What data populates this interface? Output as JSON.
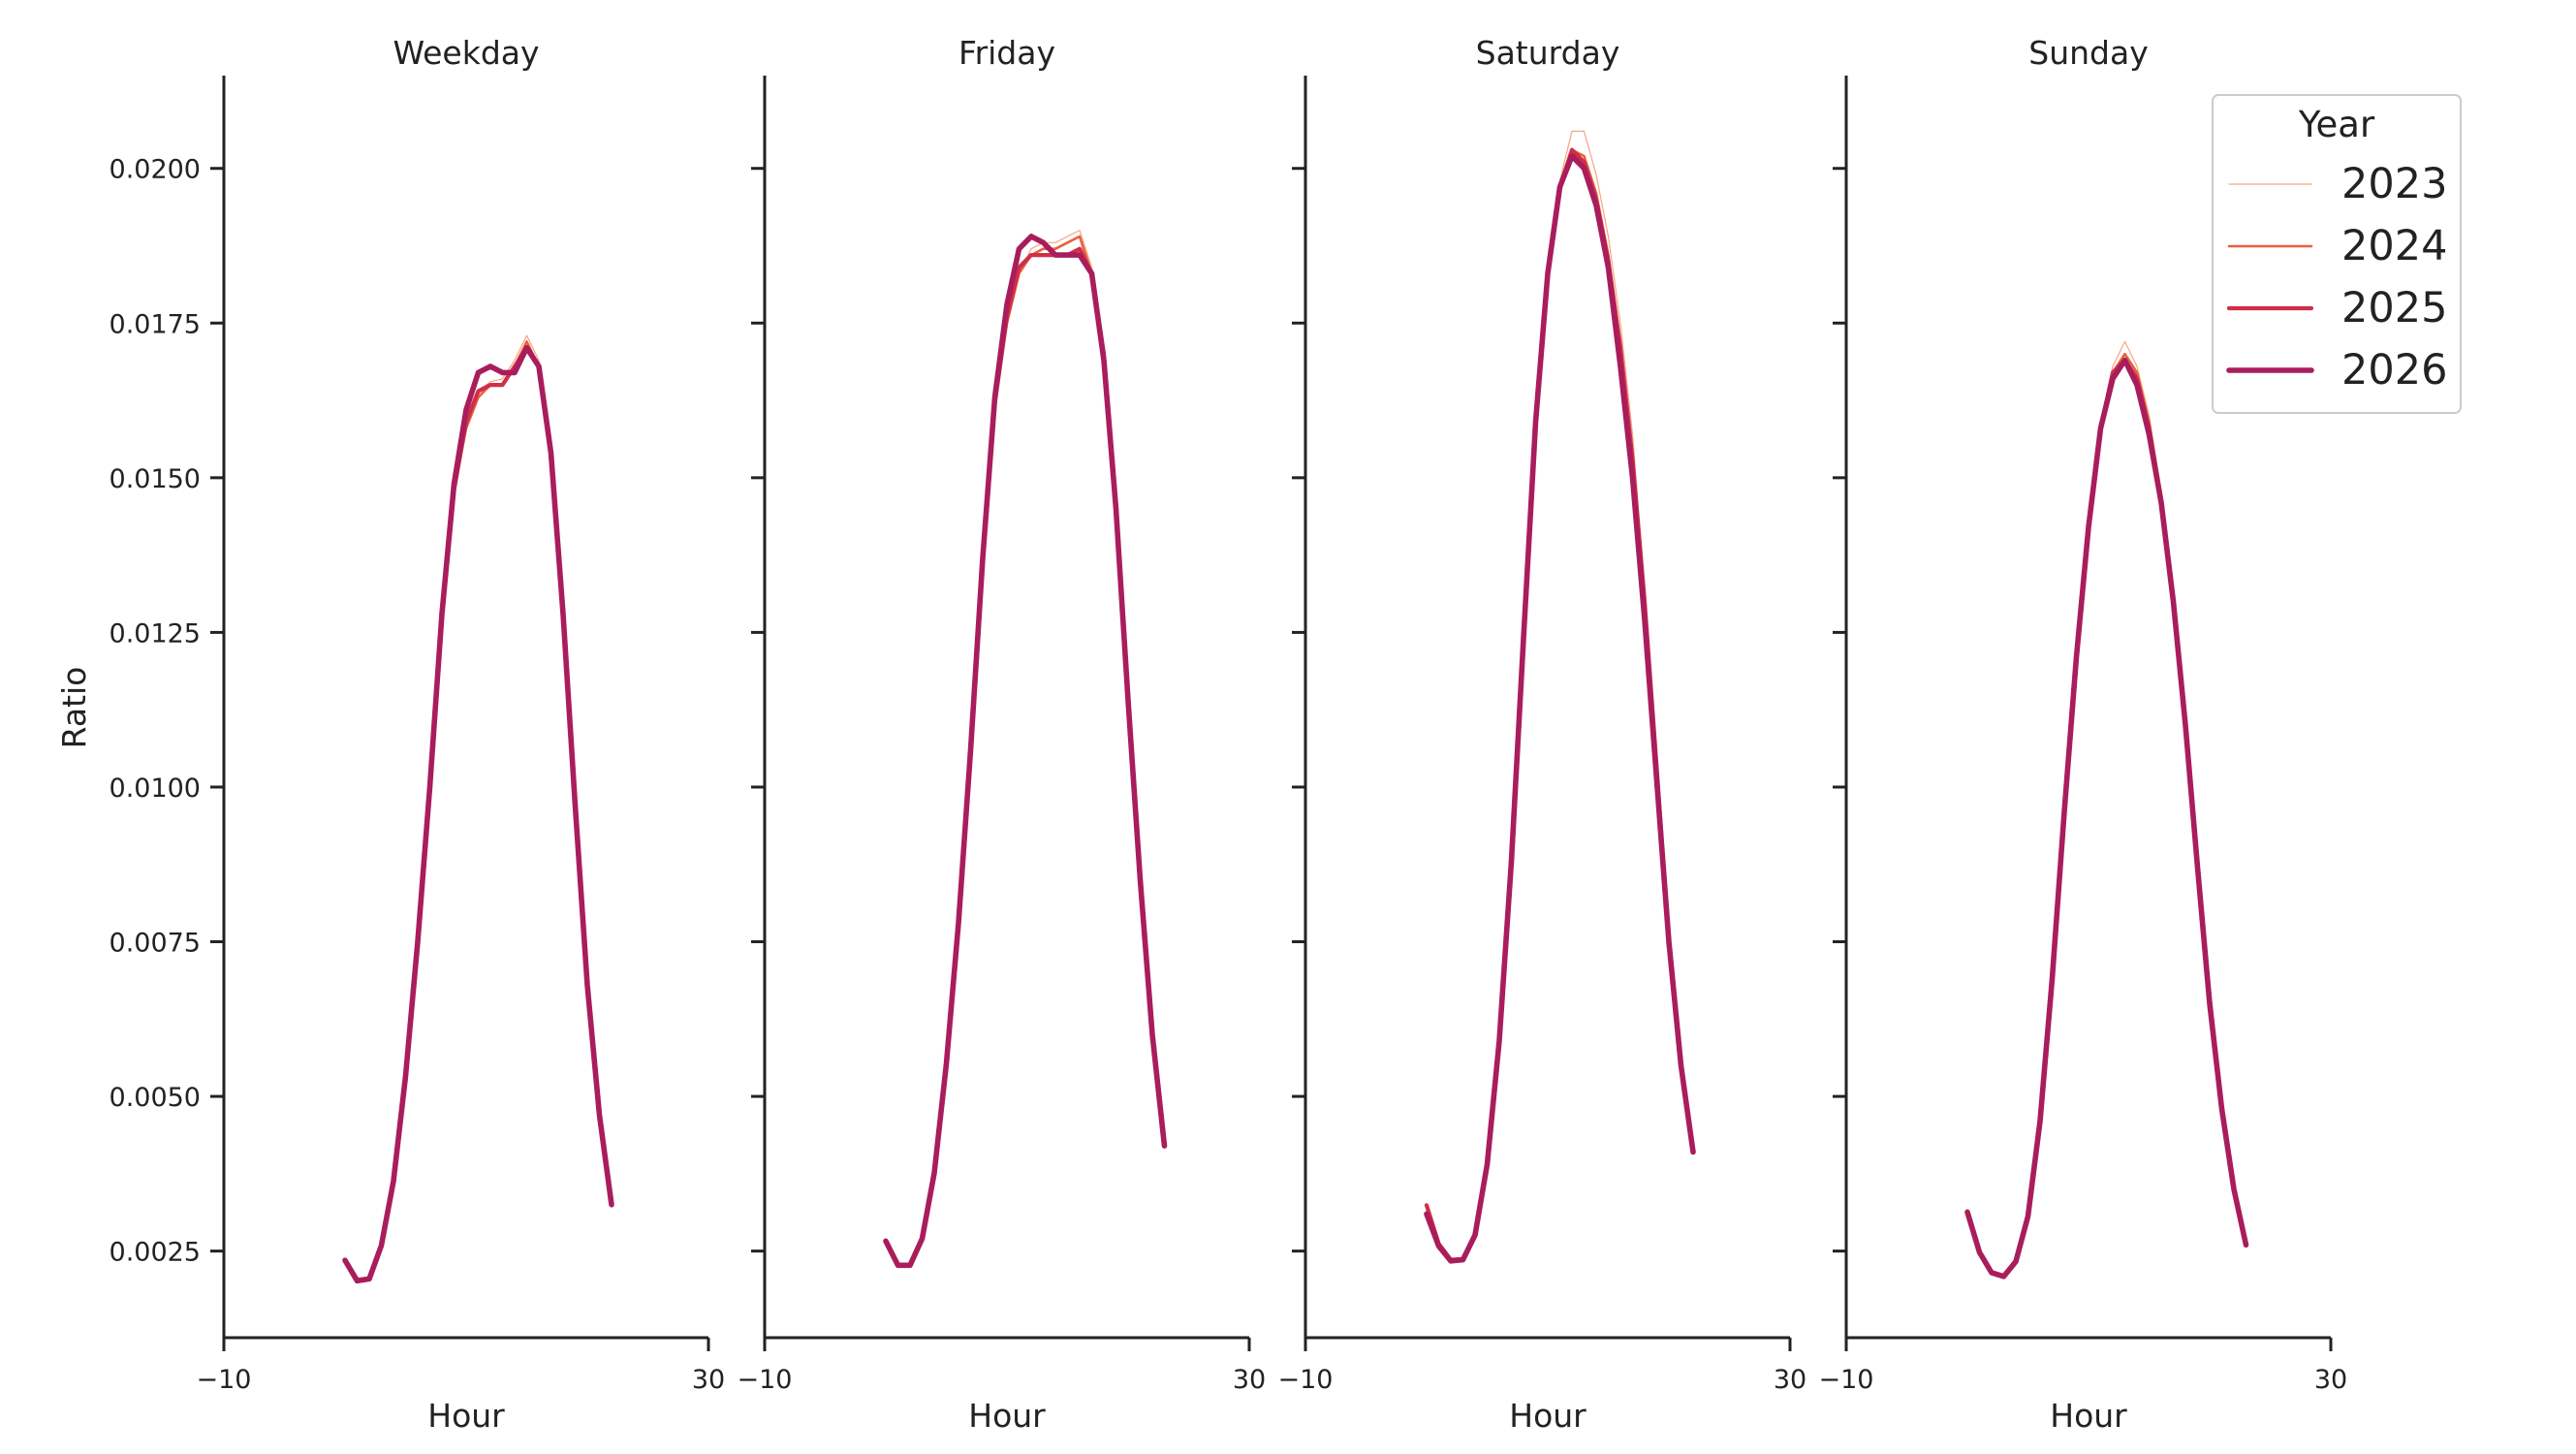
{
  "chart_data": {
    "type": "line",
    "ylabel": "Ratio",
    "xlabel": "Hour",
    "xlim": [
      -10,
      30
    ],
    "ylim": [
      0.0011,
      0.0215
    ],
    "x_ticks": [
      -10,
      30
    ],
    "x_tick_labels": [
      "−10",
      "30"
    ],
    "y_ticks": [
      0.0025,
      0.005,
      0.0075,
      0.01,
      0.0125,
      0.015,
      0.0175,
      0.02
    ],
    "y_tick_labels": [
      "0.0025",
      "0.0050",
      "0.0075",
      "0.0100",
      "0.0125",
      "0.0150",
      "0.0175",
      "0.0200"
    ],
    "grid": false,
    "legend": {
      "title": "Year",
      "placement": "top-right",
      "entries": [
        "2023",
        "2024",
        "2025",
        "2026"
      ]
    },
    "series_styles": [
      {
        "name": "2023",
        "color": "#f4a582",
        "width": 1.2
      },
      {
        "name": "2024",
        "color": "#e8603c",
        "width": 2.6
      },
      {
        "name": "2025",
        "color": "#cf2f48",
        "width": 4.2
      },
      {
        "name": "2026",
        "color": "#a91d5c",
        "width": 5.6
      }
    ],
    "x": [
      0,
      1,
      2,
      3,
      4,
      5,
      6,
      7,
      8,
      9,
      10,
      11,
      12,
      13,
      14,
      15,
      16,
      17,
      18,
      19,
      20,
      21,
      22,
      23
    ],
    "panels": [
      {
        "title": "Weekday",
        "series": [
          {
            "name": "2023",
            "values": [
              0.00237,
              0.00204,
              0.00207,
              0.00261,
              0.00365,
              0.00535,
              0.0075,
              0.01,
              0.0128,
              0.0148,
              0.0159,
              0.0164,
              0.01655,
              0.0166,
              0.0169,
              0.0173,
              0.0169,
              0.0154,
              0.0128,
              0.0098,
              0.0068,
              0.0047,
              0.0033,
              null
            ]
          },
          {
            "name": "2024",
            "values": [
              0.00236,
              0.00203,
              0.00206,
              0.0026,
              0.00364,
              0.00534,
              0.0075,
              0.01,
              0.0128,
              0.0148,
              0.0158,
              0.0163,
              0.0165,
              0.0165,
              0.0168,
              0.0172,
              0.0168,
              0.0154,
              0.0128,
              0.0098,
              0.0068,
              0.0047,
              0.0033,
              null
            ]
          },
          {
            "name": "2025",
            "values": [
              0.00236,
              0.00203,
              0.00206,
              0.0026,
              0.00364,
              0.00534,
              0.0075,
              0.01,
              0.0128,
              0.0148,
              0.0159,
              0.0164,
              0.0165,
              0.0165,
              0.0168,
              0.0171,
              0.0168,
              0.0154,
              0.0128,
              0.0098,
              0.0068,
              0.0047,
              0.00325,
              null
            ]
          },
          {
            "name": "2026",
            "values": [
              0.00235,
              0.00202,
              0.00205,
              0.00259,
              0.00363,
              0.00533,
              0.0075,
              0.01,
              0.0128,
              0.0149,
              0.0161,
              0.0167,
              0.0168,
              0.0167,
              0.0167,
              0.0171,
              0.0168,
              0.0154,
              0.0128,
              0.0097,
              0.0068,
              0.0047,
              0.00325,
              null
            ]
          }
        ]
      },
      {
        "title": "Friday",
        "series": [
          {
            "name": "2023",
            "values": [
              0.00268,
              0.00229,
              0.00229,
              0.00272,
              0.00378,
              0.00555,
              0.0078,
              0.0106,
              0.0137,
              0.0162,
              0.0175,
              0.0183,
              0.0187,
              0.0188,
              0.0188,
              0.0189,
              0.019,
              0.0184,
              0.017,
              0.0145,
              0.0114,
              0.0085,
              0.006,
              0.0042
            ]
          },
          {
            "name": "2024",
            "values": [
              0.00267,
              0.00228,
              0.00228,
              0.00271,
              0.00377,
              0.00554,
              0.0078,
              0.0106,
              0.0137,
              0.0162,
              0.0175,
              0.0183,
              0.0186,
              0.0187,
              0.0187,
              0.0188,
              0.0189,
              0.0183,
              0.017,
              0.0145,
              0.0114,
              0.0085,
              0.006,
              0.0042
            ]
          },
          {
            "name": "2025",
            "values": [
              0.00267,
              0.00228,
              0.00228,
              0.00271,
              0.00377,
              0.00554,
              0.0078,
              0.0106,
              0.0137,
              0.0162,
              0.0176,
              0.0184,
              0.0186,
              0.0186,
              0.0186,
              0.0186,
              0.0187,
              0.0183,
              0.017,
              0.0145,
              0.0114,
              0.0085,
              0.006,
              0.0042
            ]
          },
          {
            "name": "2026",
            "values": [
              0.00266,
              0.00227,
              0.00227,
              0.0027,
              0.00376,
              0.00553,
              0.0078,
              0.0106,
              0.0137,
              0.0163,
              0.0178,
              0.0187,
              0.0189,
              0.0188,
              0.0186,
              0.0186,
              0.0186,
              0.0183,
              0.0169,
              0.0145,
              0.0114,
              0.0085,
              0.006,
              0.0042
            ]
          }
        ]
      },
      {
        "title": "Saturday",
        "series": [
          {
            "name": "2023",
            "values": [
              0.00325,
              0.00263,
              0.00237,
              0.00238,
              0.00278,
              0.0039,
              0.0059,
              0.0088,
              0.0124,
              0.0159,
              0.0183,
              0.0198,
              0.0206,
              0.0206,
              0.0199,
              0.0189,
              0.0175,
              0.0157,
              0.0132,
              0.0104,
              0.0076,
              0.0055,
              0.0041,
              null
            ]
          },
          {
            "name": "2024",
            "values": [
              0.00325,
              0.00263,
              0.00237,
              0.00238,
              0.00278,
              0.0039,
              0.0059,
              0.0088,
              0.0124,
              0.0159,
              0.0183,
              0.0197,
              0.0203,
              0.0202,
              0.0196,
              0.0186,
              0.0172,
              0.0154,
              0.0131,
              0.0103,
              0.0075,
              0.0055,
              0.0041,
              null
            ]
          },
          {
            "name": "2025",
            "values": [
              0.00324,
              0.00262,
              0.00236,
              0.00237,
              0.00277,
              0.0039,
              0.0059,
              0.0088,
              0.0124,
              0.0159,
              0.0183,
              0.0197,
              0.0203,
              0.0201,
              0.0195,
              0.0185,
              0.0171,
              0.0153,
              0.013,
              0.0103,
              0.0075,
              0.0055,
              0.0041,
              null
            ]
          },
          {
            "name": "2026",
            "values": [
              0.0031,
              0.00258,
              0.00234,
              0.00236,
              0.00276,
              0.0039,
              0.0059,
              0.0088,
              0.0124,
              0.0159,
              0.0183,
              0.0197,
              0.0202,
              0.02,
              0.0194,
              0.0184,
              0.0168,
              0.015,
              0.0127,
              0.0101,
              0.0075,
              0.0055,
              0.0041,
              null
            ]
          }
        ]
      },
      {
        "title": "Sunday",
        "series": [
          {
            "name": "2023",
            "values": [
              0.00315,
              0.0025,
              0.00217,
              0.00211,
              0.00235,
              0.00308,
              0.0046,
              0.0069,
              0.0096,
              0.0121,
              0.0142,
              0.0158,
              0.0168,
              0.0172,
              0.0168,
              0.016,
              0.0148,
              0.0131,
              0.0111,
              0.0087,
              0.0066,
              0.0048,
              0.0035,
              0.0026
            ]
          },
          {
            "name": "2024",
            "values": [
              0.00315,
              0.0025,
              0.00217,
              0.00211,
              0.00235,
              0.00308,
              0.0046,
              0.0069,
              0.0096,
              0.0121,
              0.0142,
              0.0158,
              0.0167,
              0.017,
              0.0167,
              0.0159,
              0.0147,
              0.0131,
              0.0111,
              0.0087,
              0.0066,
              0.0048,
              0.0035,
              0.0026
            ]
          },
          {
            "name": "2025",
            "values": [
              0.00314,
              0.00249,
              0.00216,
              0.0021,
              0.00234,
              0.00307,
              0.0046,
              0.0069,
              0.0096,
              0.0121,
              0.0142,
              0.0158,
              0.0167,
              0.0169,
              0.0166,
              0.0158,
              0.0146,
              0.013,
              0.011,
              0.0087,
              0.0066,
              0.0048,
              0.0035,
              0.0026
            ]
          },
          {
            "name": "2026",
            "values": [
              0.00313,
              0.00248,
              0.00215,
              0.00209,
              0.00233,
              0.00306,
              0.0046,
              0.0069,
              0.0096,
              0.0121,
              0.0142,
              0.0158,
              0.0166,
              0.0169,
              0.0165,
              0.0157,
              0.0146,
              0.013,
              0.011,
              0.0087,
              0.0065,
              0.0048,
              0.0035,
              0.0026
            ]
          }
        ]
      }
    ]
  }
}
